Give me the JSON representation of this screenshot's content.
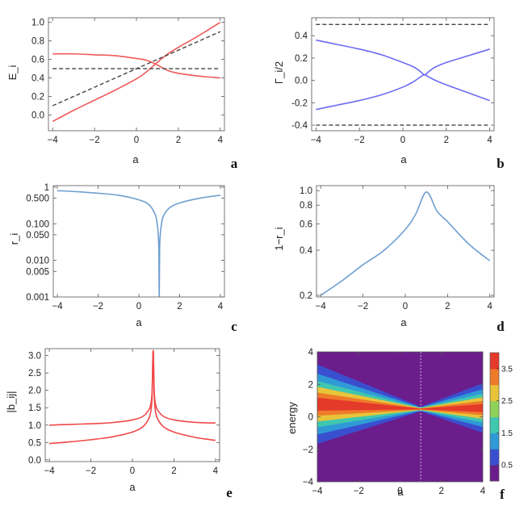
{
  "chart_data": [
    {
      "id": "a",
      "type": "line",
      "panel_label": "a",
      "xlabel": "a",
      "ylabel": "E_i",
      "xlim": [
        -4.2,
        4.2
      ],
      "ylim": [
        -0.17,
        1.05
      ],
      "xticks": [
        -4,
        -2,
        0,
        2,
        4
      ],
      "xtick_labels": [
        "−4",
        "−2",
        "0",
        "2",
        "4"
      ],
      "yticks": [
        -0.0,
        0.2,
        0.4,
        0.6,
        0.8,
        1.0
      ],
      "ytick_labels": [
        "0.0",
        "0.2",
        "0.4",
        "0.6",
        "0.8",
        "1.0"
      ],
      "series": [
        {
          "color": "#f05a5a",
          "dash": "",
          "x": [
            -4,
            -3,
            -2,
            -1,
            0,
            0.5,
            1,
            1.5,
            2,
            3,
            4
          ],
          "y": [
            0.66,
            0.66,
            0.65,
            0.64,
            0.61,
            0.59,
            0.54,
            0.48,
            0.45,
            0.42,
            0.4
          ]
        },
        {
          "color": "#f05a5a",
          "dash": "",
          "x": [
            -4,
            -3,
            -2,
            -1,
            0,
            0.5,
            1,
            1.5,
            2,
            3,
            4
          ],
          "y": [
            -0.07,
            0.05,
            0.16,
            0.27,
            0.39,
            0.47,
            0.57,
            0.66,
            0.73,
            0.86,
            1.0
          ]
        },
        {
          "color": "#444444",
          "dash": "5,3",
          "x": [
            -4,
            4
          ],
          "y": [
            0.1,
            0.9
          ]
        },
        {
          "color": "#444444",
          "dash": "5,3",
          "x": [
            -4,
            4
          ],
          "y": [
            0.5,
            0.5
          ]
        }
      ]
    },
    {
      "id": "b",
      "type": "line",
      "panel_label": "b",
      "xlabel": "a",
      "ylabel": "Γ_i/2",
      "xlim": [
        -4.2,
        4.2
      ],
      "ylim": [
        -0.45,
        0.56
      ],
      "xticks": [
        -4,
        -2,
        0,
        2,
        4
      ],
      "xtick_labels": [
        "−4",
        "−2",
        "0",
        "2",
        "4"
      ],
      "yticks": [
        -0.4,
        -0.2,
        0.0,
        0.2,
        0.4
      ],
      "ytick_labels": [
        "-0.4",
        "-0.2",
        "0.0",
        "0.2",
        "0.4"
      ],
      "series": [
        {
          "color": "#6b6bf2",
          "dash": "",
          "x": [
            -4,
            -3,
            -2,
            -1,
            0,
            0.5,
            0.8,
            1,
            1.2,
            1.5,
            2,
            3,
            4
          ],
          "y": [
            0.36,
            0.32,
            0.28,
            0.23,
            0.16,
            0.12,
            0.08,
            0.05,
            0.08,
            0.12,
            0.16,
            0.22,
            0.28
          ]
        },
        {
          "color": "#6b6bf2",
          "dash": "",
          "x": [
            -4,
            -3,
            -2,
            -1,
            0,
            0.5,
            0.8,
            1,
            1.2,
            1.5,
            2,
            3,
            4
          ],
          "y": [
            -0.26,
            -0.22,
            -0.18,
            -0.13,
            -0.06,
            -0.01,
            0.03,
            0.05,
            0.03,
            0.0,
            -0.04,
            -0.11,
            -0.18
          ]
        },
        {
          "color": "#444444",
          "dash": "5,3",
          "x": [
            -4,
            4
          ],
          "y": [
            0.5,
            0.5
          ]
        },
        {
          "color": "#444444",
          "dash": "5,3",
          "x": [
            -4,
            4
          ],
          "y": [
            -0.4,
            -0.4
          ]
        }
      ]
    },
    {
      "id": "c",
      "type": "line",
      "panel_label": "c",
      "xlabel": "a",
      "ylabel": "r_i",
      "yscale": "log",
      "xlim": [
        -4.2,
        4.2
      ],
      "ylim": [
        0.001,
        1.1
      ],
      "xticks": [
        -4,
        -2,
        0,
        2,
        4
      ],
      "xtick_labels": [
        "−4",
        "−2",
        "0",
        "2",
        "4"
      ],
      "yticks": [
        0.001,
        0.005,
        0.01,
        0.05,
        0.1,
        0.5,
        1
      ],
      "ytick_labels": [
        "0.001",
        "0.005",
        "0.010",
        "0.050",
        "0.100",
        "0.500",
        "1"
      ],
      "series": [
        {
          "color": "#6f9fd0",
          "dash": "",
          "x": [
            -4,
            -3,
            -2,
            -1,
            0,
            0.5,
            0.8,
            0.9,
            0.95,
            0.98,
            1,
            1.02,
            1.05,
            1.1,
            1.2,
            1.5,
            2,
            3,
            4
          ],
          "y": [
            0.8,
            0.75,
            0.68,
            0.6,
            0.45,
            0.33,
            0.18,
            0.1,
            0.05,
            0.02,
            0.001,
            0.02,
            0.05,
            0.09,
            0.16,
            0.27,
            0.37,
            0.5,
            0.6
          ]
        }
      ]
    },
    {
      "id": "d",
      "type": "line",
      "panel_label": "d",
      "xlabel": "a",
      "ylabel": "1−r_i",
      "yscale": "log",
      "xlim": [
        -4.2,
        4.2
      ],
      "ylim": [
        0.195,
        1.08
      ],
      "xticks": [
        -4,
        -2,
        0,
        2,
        4
      ],
      "xtick_labels": [
        "−4",
        "−2",
        "0",
        "2",
        "4"
      ],
      "yticks": [
        0.2,
        0.4,
        0.6,
        0.8,
        1.0
      ],
      "ytick_labels": [
        "0.2",
        "0.4",
        "0.6",
        "0.8",
        "1.0"
      ],
      "series": [
        {
          "color": "#6f9fd0",
          "dash": "",
          "x": [
            -4,
            -3,
            -2,
            -1,
            0,
            0.5,
            1,
            1.5,
            2,
            3,
            4
          ],
          "y": [
            0.2,
            0.25,
            0.32,
            0.4,
            0.55,
            0.7,
            0.98,
            0.73,
            0.62,
            0.44,
            0.34
          ]
        }
      ]
    },
    {
      "id": "e",
      "type": "line",
      "panel_label": "e",
      "xlabel": "a",
      "ylabel": "|b_ij|",
      "xlim": [
        -4.2,
        4.2
      ],
      "ylim": [
        -0.05,
        3.2
      ],
      "xticks": [
        -4,
        -2,
        0,
        2,
        4
      ],
      "xtick_labels": [
        "−4",
        "−2",
        "0",
        "2",
        "4"
      ],
      "yticks": [
        0.0,
        0.5,
        1.0,
        1.5,
        2.0,
        2.5,
        3.0
      ],
      "ytick_labels": [
        "0.0",
        "0.5",
        "1.0",
        "1.5",
        "2.0",
        "2.5",
        "3.0"
      ],
      "series": [
        {
          "color": "#f04848",
          "dash": "",
          "x": [
            -4,
            -3,
            -2,
            -1,
            0,
            0.5,
            0.8,
            0.9,
            0.95,
            1,
            1.05,
            1.1,
            1.2,
            1.5,
            2,
            3,
            4
          ],
          "y": [
            1.0,
            1.02,
            1.04,
            1.07,
            1.15,
            1.25,
            1.45,
            1.65,
            2.0,
            3.15,
            2.0,
            1.65,
            1.45,
            1.25,
            1.15,
            1.08,
            1.06
          ]
        },
        {
          "color": "#f04848",
          "dash": "",
          "x": [
            -4,
            -3,
            -2,
            -1,
            0,
            0.5,
            0.8,
            0.9,
            0.95,
            1,
            1.05,
            1.1,
            1.2,
            1.5,
            2,
            3,
            4
          ],
          "y": [
            0.47,
            0.52,
            0.58,
            0.66,
            0.8,
            0.95,
            1.2,
            1.45,
            1.85,
            3.15,
            1.85,
            1.45,
            1.2,
            0.95,
            0.8,
            0.65,
            0.56
          ]
        }
      ]
    },
    {
      "id": "f",
      "type": "heatmap",
      "panel_label": "f",
      "xlabel": "a",
      "ylabel": "energy",
      "xlim": [
        -4,
        4
      ],
      "ylim": [
        -4,
        4
      ],
      "xticks": [
        -4,
        -2,
        0,
        2,
        4
      ],
      "xtick_labels": [
        "−4",
        "−2",
        "0",
        "2",
        "4"
      ],
      "yticks": [
        -4,
        -2,
        0,
        2,
        4
      ],
      "ytick_labels": [
        "−4",
        "−2",
        "0",
        "2",
        "4"
      ],
      "marker_line_x": 1,
      "colorbar": {
        "ticks": [
          0.5,
          1.5,
          2.5,
          3.5
        ],
        "tick_labels": [
          "0.5",
          "1.5",
          "2.5",
          "3.5"
        ],
        "range": [
          0,
          4
        ],
        "colors": [
          "#6b1d8c",
          "#3a4fd0",
          "#2f9ad6",
          "#3fc7b0",
          "#8fd25a",
          "#e8c43a",
          "#ef7a2a",
          "#e43a2a"
        ]
      },
      "background_color": "#6b1d8c"
    }
  ]
}
